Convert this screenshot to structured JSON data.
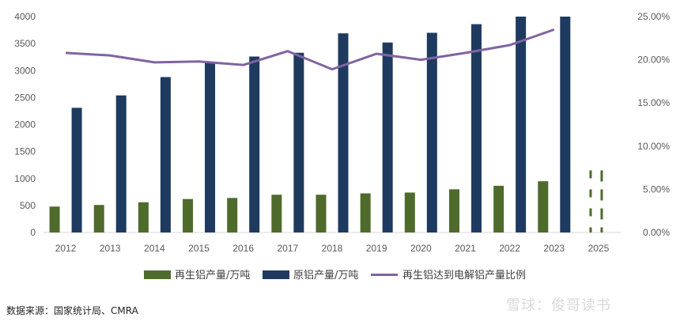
{
  "chart_data": {
    "type": "bar",
    "categories": [
      "2012",
      "2013",
      "2014",
      "2015",
      "2016",
      "2017",
      "2018",
      "2019",
      "2020",
      "2021",
      "2022",
      "2023",
      "2025"
    ],
    "series": [
      {
        "name": "再生铝产量/万吨",
        "kind": "bar",
        "axis": "left",
        "color": "#4e6b2c",
        "values": [
          480,
          510,
          560,
          620,
          640,
          700,
          700,
          725,
          740,
          800,
          865,
          950,
          null
        ]
      },
      {
        "name": "原铝产量/万吨",
        "kind": "bar",
        "axis": "left",
        "color": "#1f3a5f",
        "values": [
          2310,
          2540,
          2880,
          3150,
          3260,
          3330,
          3690,
          3520,
          3700,
          3860,
          4020,
          4150,
          null
        ]
      },
      {
        "name": "再生铝达到电解铝产量比例",
        "kind": "line",
        "axis": "right",
        "color": "#8064a2",
        "values": [
          0.208,
          0.205,
          0.197,
          0.198,
          0.194,
          0.21,
          0.189,
          0.207,
          0.2,
          0.208,
          0.217,
          0.235,
          null
        ]
      }
    ],
    "projection_2025": {
      "dashed_bar_value": 1150
    },
    "left_axis": {
      "ylim": [
        0,
        4000
      ],
      "ticks": [
        "0",
        "500",
        "1000",
        "1500",
        "2000",
        "2500",
        "3000",
        "3500",
        "4000"
      ]
    },
    "right_axis": {
      "ylim": [
        0,
        0.25
      ],
      "ticks": [
        "0.00%",
        "5.00%",
        "10.00%",
        "15.00%",
        "20.00%",
        "25.00%"
      ]
    },
    "legend_position": "bottom"
  },
  "source_text": "数据来源：国家统计局、CMRA",
  "watermark": "雪球：俊哥读书"
}
